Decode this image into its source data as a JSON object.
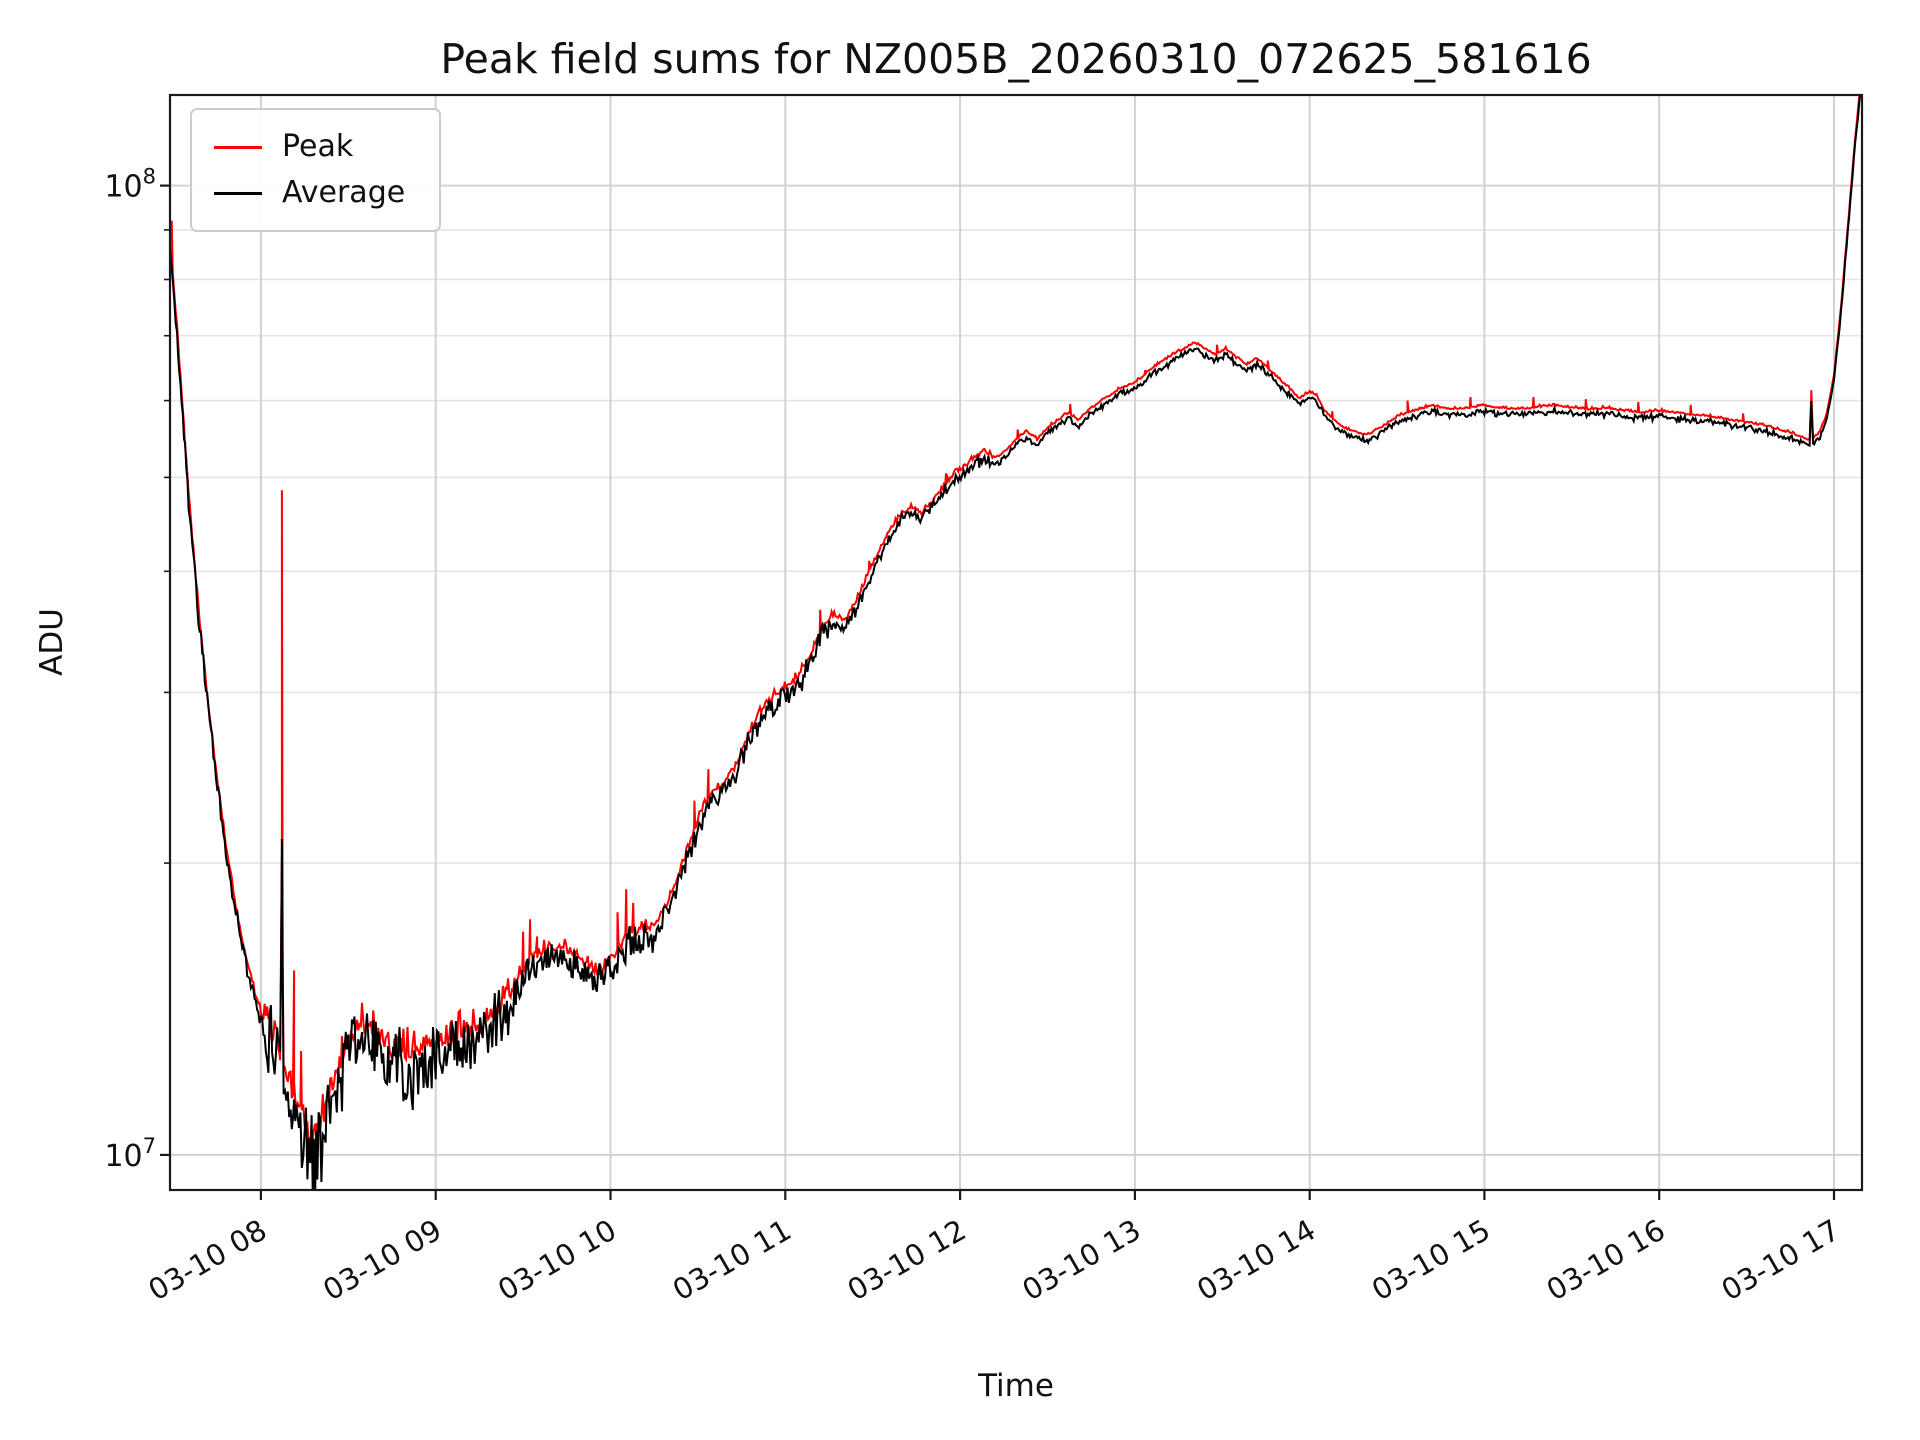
{
  "chart_data": {
    "type": "line",
    "title": "Peak field sums for NZ005B_20260310_072625_581616",
    "xlabel": "Time",
    "ylabel": "ADU",
    "yscale": "log",
    "units": "ADU",
    "xlim": [
      7.48,
      17.16
    ],
    "ylim": [
      9200000,
      124000000
    ],
    "x_ticks": [
      {
        "t": 8,
        "label": "03-10 08"
      },
      {
        "t": 9,
        "label": "03-10 09"
      },
      {
        "t": 10,
        "label": "03-10 10"
      },
      {
        "t": 11,
        "label": "03-10 11"
      },
      {
        "t": 12,
        "label": "03-10 12"
      },
      {
        "t": 13,
        "label": "03-10 13"
      },
      {
        "t": 14,
        "label": "03-10 14"
      },
      {
        "t": 15,
        "label": "03-10 15"
      },
      {
        "t": 16,
        "label": "03-10 16"
      },
      {
        "t": 17,
        "label": "03-10 17"
      }
    ],
    "y_ticks": [
      {
        "v": 10000000.0,
        "label_base": "10",
        "label_exp": "7"
      },
      {
        "v": 100000000.0,
        "label_base": "10",
        "label_exp": "8"
      }
    ],
    "y_minor": [
      20000000.0,
      30000000.0,
      40000000.0,
      50000000.0,
      60000000.0,
      70000000.0,
      80000000.0,
      90000000.0
    ],
    "grid": {
      "major_color": "#d2d2d2",
      "minor_color": "#e4e4e4",
      "on": true,
      "which": "both"
    },
    "legend_position": "upper left",
    "series": [
      {
        "name": "Peak",
        "color": "#ff0000",
        "role": "peak"
      },
      {
        "name": "Average",
        "color": "#000000",
        "role": "average"
      }
    ],
    "base_keypoints_Madu": [
      [
        7.48,
        87
      ],
      [
        7.52,
        70
      ],
      [
        7.56,
        55
      ],
      [
        7.6,
        44
      ],
      [
        7.65,
        35
      ],
      [
        7.7,
        28.5
      ],
      [
        7.75,
        24
      ],
      [
        7.8,
        20.5
      ],
      [
        7.85,
        18
      ],
      [
        7.9,
        16.2
      ],
      [
        7.95,
        14.8
      ],
      [
        8.0,
        13.8
      ],
      [
        8.05,
        13.0
      ],
      [
        8.1,
        12.4
      ],
      [
        8.11,
        12.2
      ],
      [
        8.12,
        19.5
      ],
      [
        8.13,
        12.0
      ],
      [
        8.17,
        11.4
      ],
      [
        8.21,
        10.8
      ],
      [
        8.25,
        10.2
      ],
      [
        8.29,
        9.9
      ],
      [
        8.33,
        10.2
      ],
      [
        8.37,
        10.8
      ],
      [
        8.41,
        11.4
      ],
      [
        8.45,
        12.0
      ],
      [
        8.5,
        12.6
      ],
      [
        8.55,
        13.0
      ],
      [
        8.6,
        13.2
      ],
      [
        8.65,
        13.0
      ],
      [
        8.7,
        12.7
      ],
      [
        8.75,
        12.4
      ],
      [
        8.8,
        12.3
      ],
      [
        8.9,
        12.5
      ],
      [
        9.0,
        12.6
      ],
      [
        9.1,
        12.8
      ],
      [
        9.2,
        13.0
      ],
      [
        9.3,
        13.4
      ],
      [
        9.4,
        14.0
      ],
      [
        9.48,
        15.0
      ],
      [
        9.55,
        15.6
      ],
      [
        9.62,
        15.9
      ],
      [
        9.7,
        16.0
      ],
      [
        9.8,
        15.8
      ],
      [
        9.87,
        15.3
      ],
      [
        9.93,
        15.1
      ],
      [
        10.0,
        15.6
      ],
      [
        10.07,
        16.2
      ],
      [
        10.14,
        16.6
      ],
      [
        10.21,
        16.7
      ],
      [
        10.28,
        17.2
      ],
      [
        10.35,
        18.3
      ],
      [
        10.42,
        19.8
      ],
      [
        10.5,
        21.8
      ],
      [
        10.57,
        23.2
      ],
      [
        10.63,
        23.6
      ],
      [
        10.7,
        24.4
      ],
      [
        10.77,
        26.2
      ],
      [
        10.84,
        27.8
      ],
      [
        10.9,
        28.8
      ],
      [
        10.96,
        29.4
      ],
      [
        11.02,
        30.0
      ],
      [
        11.08,
        30.6
      ],
      [
        11.15,
        32.5
      ],
      [
        11.22,
        34.5
      ],
      [
        11.28,
        35.5
      ],
      [
        11.34,
        35.0
      ],
      [
        11.4,
        36.5
      ],
      [
        11.47,
        39.0
      ],
      [
        11.54,
        41.5
      ],
      [
        11.6,
        43.5
      ],
      [
        11.66,
        45.0
      ],
      [
        11.72,
        46.0
      ],
      [
        11.78,
        45.2
      ],
      [
        11.84,
        46.5
      ],
      [
        11.9,
        48.0
      ],
      [
        11.96,
        49.5
      ],
      [
        12.02,
        50.5
      ],
      [
        12.08,
        51.5
      ],
      [
        12.14,
        52.5
      ],
      [
        12.2,
        51.5
      ],
      [
        12.26,
        52.5
      ],
      [
        12.32,
        54.0
      ],
      [
        12.38,
        55.0
      ],
      [
        12.44,
        54.0
      ],
      [
        12.5,
        55.5
      ],
      [
        12.56,
        56.5
      ],
      [
        12.62,
        57.5
      ],
      [
        12.68,
        56.5
      ],
      [
        12.74,
        58.0
      ],
      [
        12.8,
        59.0
      ],
      [
        12.86,
        60.0
      ],
      [
        12.92,
        61.0
      ],
      [
        12.98,
        61.5
      ],
      [
        13.04,
        62.5
      ],
      [
        13.1,
        64.0
      ],
      [
        13.16,
        65.0
      ],
      [
        13.22,
        66.0
      ],
      [
        13.28,
        67.0
      ],
      [
        13.34,
        68.0
      ],
      [
        13.4,
        67.0
      ],
      [
        13.46,
        66.0
      ],
      [
        13.52,
        67.0
      ],
      [
        13.58,
        65.5
      ],
      [
        13.64,
        64.5
      ],
      [
        13.7,
        65.5
      ],
      [
        13.76,
        64.0
      ],
      [
        13.82,
        62.5
      ],
      [
        13.88,
        61.0
      ],
      [
        13.94,
        59.5
      ],
      [
        14.0,
        60.5
      ],
      [
        14.04,
        60.0
      ],
      [
        14.08,
        58.0
      ],
      [
        14.14,
        56.5
      ],
      [
        14.2,
        55.5
      ],
      [
        14.26,
        55.0
      ],
      [
        14.32,
        54.5
      ],
      [
        14.38,
        55.2
      ],
      [
        14.44,
        56.0
      ],
      [
        14.5,
        57.0
      ],
      [
        14.56,
        57.5
      ],
      [
        14.62,
        58.0
      ],
      [
        14.7,
        58.5
      ],
      [
        14.8,
        58.0
      ],
      [
        14.9,
        58.2
      ],
      [
        15.0,
        58.5
      ],
      [
        15.1,
        58.2
      ],
      [
        15.2,
        58.0
      ],
      [
        15.3,
        58.3
      ],
      [
        15.4,
        58.5
      ],
      [
        15.5,
        58.2
      ],
      [
        15.6,
        58.0
      ],
      [
        15.7,
        58.2
      ],
      [
        15.8,
        57.8
      ],
      [
        15.9,
        57.5
      ],
      [
        16.0,
        57.8
      ],
      [
        16.1,
        57.5
      ],
      [
        16.2,
        57.2
      ],
      [
        16.3,
        57.0
      ],
      [
        16.4,
        56.6
      ],
      [
        16.5,
        56.2
      ],
      [
        16.6,
        55.8
      ],
      [
        16.7,
        55.2
      ],
      [
        16.78,
        54.6
      ],
      [
        16.84,
        54.1
      ],
      [
        16.86,
        53.9
      ],
      [
        16.87,
        60.0
      ],
      [
        16.88,
        54.2
      ],
      [
        16.92,
        55.0
      ],
      [
        16.96,
        57.5
      ],
      [
        17.0,
        63
      ],
      [
        17.04,
        74
      ],
      [
        17.08,
        90
      ],
      [
        17.12,
        110
      ],
      [
        17.16,
        130
      ]
    ],
    "peak_spikes_Madu": [
      [
        7.49,
        92
      ],
      [
        8.12,
        48.5
      ],
      [
        8.19,
        15.5
      ],
      [
        8.23,
        12.8
      ],
      [
        9.5,
        17.0
      ],
      [
        9.54,
        17.5
      ],
      [
        9.58,
        16.8
      ],
      [
        10.04,
        17.8
      ],
      [
        10.09,
        18.8
      ],
      [
        10.13,
        18.2
      ],
      [
        10.48,
        23.2
      ],
      [
        10.56,
        25.0
      ],
      [
        11.2,
        36.5
      ],
      [
        11.48,
        41.0
      ],
      [
        11.92,
        50.5
      ],
      [
        12.33,
        56.0
      ],
      [
        12.63,
        59.5
      ],
      [
        13.06,
        64.5
      ],
      [
        13.47,
        68.5
      ],
      [
        13.76,
        66.0
      ],
      [
        14.13,
        58.5
      ],
      [
        14.56,
        60.0
      ],
      [
        14.92,
        60.5
      ],
      [
        15.28,
        60.5
      ],
      [
        15.58,
        60.2
      ],
      [
        15.88,
        59.8
      ],
      [
        16.18,
        59.4
      ],
      [
        16.48,
        58.2
      ],
      [
        16.87,
        61.5
      ]
    ],
    "noise_spec": [
      [
        7.48,
        8.02,
        0.012
      ],
      [
        8.02,
        9.42,
        0.05
      ],
      [
        9.42,
        10.25,
        0.022
      ],
      [
        10.25,
        11.3,
        0.014
      ],
      [
        11.3,
        12.2,
        0.008
      ],
      [
        12.2,
        16.8,
        0.004
      ],
      [
        16.8,
        17.16,
        0.003
      ]
    ],
    "noise_seed": 7
  }
}
